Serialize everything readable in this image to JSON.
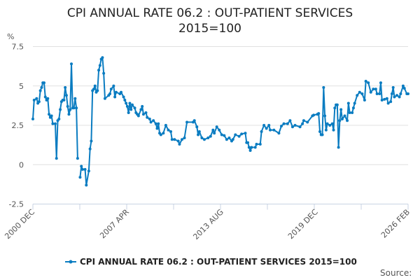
{
  "chart_data": {
    "type": "line",
    "title_lines": [
      "CPI ANNUAL RATE 06.2 : OUT-PATIENT SERVICES",
      "2015=100"
    ],
    "ylabel": "%",
    "ylim": [
      -2.5,
      7.5
    ],
    "yticks": [
      "7.5",
      "5",
      "2.5",
      "0",
      "-2.5"
    ],
    "ytick_values": [
      7.5,
      5,
      2.5,
      0,
      -2.5
    ],
    "xlim": [
      "2000-12",
      "2026-02"
    ],
    "xtick_labels": [
      "2000 DEC",
      "2007 APR",
      "2013 AUG",
      "2019 DEC",
      "2026 FEB"
    ],
    "xtick_dates": [
      "2000-12",
      "2007-04",
      "2013-08",
      "2019-12",
      "2026-02"
    ],
    "grid": true,
    "legend_position": "bottom",
    "source_label": "Source:",
    "series": [
      {
        "name": "CPI ANNUAL RATE 06.2 : OUT-PATIENT SERVICES 2015=100",
        "color": "#0a7cc1",
        "points": [
          [
            "2000-12",
            2.9
          ],
          [
            "2001-01",
            4.1
          ],
          [
            "2001-03",
            4.2
          ],
          [
            "2001-04",
            3.9
          ],
          [
            "2001-05",
            4.0
          ],
          [
            "2001-06",
            4.7
          ],
          [
            "2001-07",
            4.9
          ],
          [
            "2001-08",
            5.2
          ],
          [
            "2001-09",
            5.2
          ],
          [
            "2001-10",
            4.3
          ],
          [
            "2001-11",
            4.1
          ],
          [
            "2001-12",
            4.2
          ],
          [
            "2002-01",
            3.2
          ],
          [
            "2002-02",
            3.0
          ],
          [
            "2002-03",
            3.1
          ],
          [
            "2002-04",
            2.6
          ],
          [
            "2002-06",
            2.6
          ],
          [
            "2002-07",
            0.4
          ],
          [
            "2002-08",
            2.8
          ],
          [
            "2002-09",
            2.9
          ],
          [
            "2002-10",
            3.5
          ],
          [
            "2002-11",
            4.0
          ],
          [
            "2002-12",
            4.1
          ],
          [
            "2003-01",
            4.1
          ],
          [
            "2003-02",
            4.9
          ],
          [
            "2003-03",
            4.4
          ],
          [
            "2003-04",
            3.7
          ],
          [
            "2003-05",
            3.2
          ],
          [
            "2003-06",
            3.5
          ],
          [
            "2003-07",
            6.4
          ],
          [
            "2003-08",
            3.6
          ],
          [
            "2003-09",
            3.6
          ],
          [
            "2003-10",
            4.2
          ],
          [
            "2003-11",
            3.6
          ],
          [
            "2003-12",
            0.4
          ],
          [
            "2004-01",
            null
          ],
          [
            "2004-02",
            -0.8
          ],
          [
            "2004-03",
            -0.1
          ],
          [
            "2004-04",
            -0.3
          ],
          [
            "2004-06",
            -0.3
          ],
          [
            "2004-07",
            -1.3
          ],
          [
            "2004-09",
            -0.4
          ],
          [
            "2004-10",
            1.0
          ],
          [
            "2004-11",
            1.5
          ],
          [
            "2004-12",
            4.7
          ],
          [
            "2005-01",
            4.8
          ],
          [
            "2005-02",
            5.0
          ],
          [
            "2005-03",
            4.6
          ],
          [
            "2005-04",
            4.7
          ],
          [
            "2005-05",
            6.0
          ],
          [
            "2005-06",
            6.3
          ],
          [
            "2005-07",
            6.7
          ],
          [
            "2005-08",
            6.8
          ],
          [
            "2005-09",
            5.8
          ],
          [
            "2005-10",
            4.2
          ],
          [
            "2006-01",
            4.4
          ],
          [
            "2006-02",
            4.5
          ],
          [
            "2006-03",
            4.8
          ],
          [
            "2006-05",
            5.0
          ],
          [
            "2006-06",
            4.3
          ],
          [
            "2006-07",
            4.6
          ],
          [
            "2006-10",
            4.5
          ],
          [
            "2006-11",
            4.6
          ],
          [
            "2007-01",
            4.3
          ],
          [
            "2007-02",
            4.1
          ],
          [
            "2007-03",
            3.9
          ],
          [
            "2007-04",
            3.7
          ],
          [
            "2007-05",
            3.3
          ],
          [
            "2007-06",
            3.9
          ],
          [
            "2007-07",
            3.5
          ],
          [
            "2007-08",
            3.8
          ],
          [
            "2007-10",
            3.6
          ],
          [
            "2007-11",
            3.3
          ],
          [
            "2007-12",
            3.2
          ],
          [
            "2008-01",
            3.1
          ],
          [
            "2008-03",
            3.5
          ],
          [
            "2008-04",
            3.7
          ],
          [
            "2008-05",
            3.2
          ],
          [
            "2008-07",
            3.3
          ],
          [
            "2008-08",
            3.0
          ],
          [
            "2008-10",
            2.9
          ],
          [
            "2008-11",
            2.7
          ],
          [
            "2009-01",
            2.8
          ],
          [
            "2009-03",
            2.6
          ],
          [
            "2009-04",
            2.3
          ],
          [
            "2009-05",
            2.6
          ],
          [
            "2009-06",
            2.0
          ],
          [
            "2009-07",
            1.9
          ],
          [
            "2009-09",
            2.0
          ],
          [
            "2009-11",
            2.5
          ],
          [
            "2010-01",
            2.2
          ],
          [
            "2010-03",
            2.1
          ],
          [
            "2010-04",
            1.6
          ],
          [
            "2010-06",
            1.6
          ],
          [
            "2010-09",
            1.5
          ],
          [
            "2010-10",
            1.3
          ],
          [
            "2010-12",
            1.6
          ],
          [
            "2011-02",
            1.7
          ],
          [
            "2011-04",
            2.7
          ],
          [
            "2011-09",
            2.7
          ],
          [
            "2011-10",
            2.8
          ],
          [
            "2011-12",
            2.4
          ],
          [
            "2012-01",
            1.9
          ],
          [
            "2012-02",
            2.1
          ],
          [
            "2012-04",
            1.7
          ],
          [
            "2012-06",
            1.6
          ],
          [
            "2012-09",
            1.7
          ],
          [
            "2012-11",
            1.8
          ],
          [
            "2013-01",
            2.2
          ],
          [
            "2013-02",
            2.0
          ],
          [
            "2013-04",
            2.4
          ],
          [
            "2013-06",
            2.2
          ],
          [
            "2013-08",
            1.9
          ],
          [
            "2013-10",
            1.85
          ],
          [
            "2013-12",
            1.6
          ],
          [
            "2014-02",
            1.7
          ],
          [
            "2014-04",
            1.5
          ],
          [
            "2014-05",
            1.6
          ],
          [
            "2014-07",
            1.9
          ],
          [
            "2014-10",
            1.8
          ],
          [
            "2014-12",
            1.95
          ],
          [
            "2015-03",
            2.0
          ],
          [
            "2015-04",
            1.4
          ],
          [
            "2015-05",
            1.4
          ],
          [
            "2015-06",
            1.1
          ],
          [
            "2015-07",
            0.9
          ],
          [
            "2015-08",
            1.1
          ],
          [
            "2015-11",
            1.1
          ],
          [
            "2015-12",
            1.3
          ],
          [
            "2016-03",
            1.3
          ],
          [
            "2016-04",
            2.1
          ],
          [
            "2016-06",
            2.5
          ],
          [
            "2016-08",
            2.3
          ],
          [
            "2016-10",
            2.5
          ],
          [
            "2016-11",
            2.2
          ],
          [
            "2017-02",
            2.2
          ],
          [
            "2017-06",
            2.0
          ],
          [
            "2017-08",
            2.45
          ],
          [
            "2017-10",
            2.6
          ],
          [
            "2018-01",
            2.6
          ],
          [
            "2018-03",
            2.8
          ],
          [
            "2018-05",
            2.4
          ],
          [
            "2018-07",
            2.5
          ],
          [
            "2018-11",
            2.4
          ],
          [
            "2019-01",
            2.6
          ],
          [
            "2019-02",
            2.8
          ],
          [
            "2019-05",
            2.7
          ],
          [
            "2019-09",
            3.1
          ],
          [
            "2019-10",
            3.15
          ],
          [
            "2020-01",
            3.2
          ],
          [
            "2020-02",
            3.25
          ],
          [
            "2020-03",
            2.1
          ],
          [
            "2020-04",
            1.9
          ],
          [
            "2020-05",
            1.9
          ],
          [
            "2020-06",
            4.9
          ],
          [
            "2020-07",
            3.1
          ],
          [
            "2020-08",
            2.2
          ],
          [
            "2020-09",
            2.6
          ],
          [
            "2020-11",
            2.5
          ],
          [
            "2021-01",
            2.6
          ],
          [
            "2021-02",
            2.2
          ],
          [
            "2021-03",
            3.6
          ],
          [
            "2021-04",
            3.8
          ],
          [
            "2021-05",
            3.8
          ],
          [
            "2021-06",
            1.1
          ],
          [
            "2021-07",
            2.8
          ],
          [
            "2021-08",
            3.5
          ],
          [
            "2021-09",
            2.9
          ],
          [
            "2021-11",
            3.1
          ],
          [
            "2022-01",
            2.8
          ],
          [
            "2022-02",
            3.9
          ],
          [
            "2022-03",
            3.3
          ],
          [
            "2022-05",
            3.3
          ],
          [
            "2022-06",
            3.6
          ],
          [
            "2022-07",
            3.9
          ],
          [
            "2022-09",
            4.4
          ],
          [
            "2022-11",
            4.6
          ],
          [
            "2023-01",
            4.5
          ],
          [
            "2023-03",
            4.1
          ],
          [
            "2023-04",
            5.3
          ],
          [
            "2023-06",
            5.2
          ],
          [
            "2023-08",
            4.6
          ],
          [
            "2023-10",
            4.8
          ],
          [
            "2023-12",
            4.8
          ],
          [
            "2024-01",
            4.5
          ],
          [
            "2024-03",
            4.5
          ],
          [
            "2024-04",
            5.2
          ],
          [
            "2024-05",
            4.1
          ],
          [
            "2024-07",
            4.15
          ],
          [
            "2024-09",
            4.2
          ],
          [
            "2024-10",
            3.9
          ],
          [
            "2024-12",
            4.0
          ],
          [
            "2025-01",
            4.5
          ],
          [
            "2025-02",
            4.9
          ],
          [
            "2025-03",
            4.3
          ],
          [
            "2025-05",
            4.4
          ],
          [
            "2025-07",
            4.3
          ],
          [
            "2025-08",
            4.5
          ],
          [
            "2025-10",
            5.0
          ],
          [
            "2025-11",
            4.85
          ],
          [
            "2026-01",
            4.5
          ],
          [
            "2026-02",
            4.5
          ]
        ]
      }
    ]
  }
}
